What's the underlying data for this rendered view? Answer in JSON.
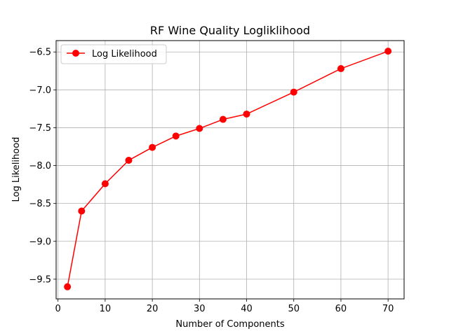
{
  "chart_data": {
    "type": "line",
    "title": "RF Wine Quality  Logliklihood",
    "xlabel": "Number of Components",
    "ylabel": "Log Likelihood",
    "xlim": [
      -0.4,
      73.4
    ],
    "ylim": [
      -9.76,
      -6.35
    ],
    "xticks": [
      0,
      10,
      20,
      30,
      40,
      50,
      60,
      70
    ],
    "xtick_labels": [
      "0",
      "10",
      "20",
      "30",
      "40",
      "50",
      "60",
      "70"
    ],
    "yticks": [
      -9.5,
      -9.0,
      -8.5,
      -8.0,
      -7.5,
      -7.0,
      -6.5
    ],
    "ytick_labels": [
      "−9.5",
      "−9.0",
      "−8.5",
      "−8.0",
      "−7.5",
      "−7.0",
      "−6.5"
    ],
    "grid": true,
    "legend_position": "top-left",
    "series": [
      {
        "name": "Log Likelihood",
        "color": "#ff0000",
        "marker": "circle",
        "x": [
          2,
          5,
          10,
          15,
          20,
          25,
          30,
          35,
          40,
          50,
          60,
          70
        ],
        "y": [
          -9.6,
          -8.6,
          -8.24,
          -7.93,
          -7.76,
          -7.61,
          -7.51,
          -7.39,
          -7.32,
          -7.03,
          -6.72,
          -6.49
        ]
      }
    ]
  }
}
